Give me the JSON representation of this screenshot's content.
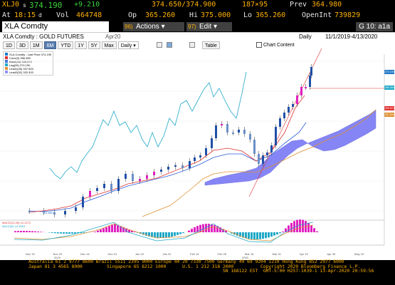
{
  "header": {
    "ticker": "XLJ0",
    "ticker_suffix": "s",
    "last": "374.190",
    "change": "+9.210",
    "bid_ask": "374.650/374.900",
    "size": "187×95",
    "prev_label": "Prev",
    "prev": "364.980",
    "at_label": "At",
    "time": "18:15",
    "time_suffix": "d",
    "vol_label": "Vol",
    "vol": "464748",
    "op_label": "Op",
    "op": "365.260",
    "hi_label": "Hi",
    "hi": "375.000",
    "lo_label": "Lo",
    "lo": "365.260",
    "oi_label": "OpenInt",
    "oi": "739829"
  },
  "toolbar": {
    "security": "XLA Comdty",
    "actions_num": "96)",
    "actions_label": "Actions ▾",
    "edit_num": "97)",
    "edit_label": "Edit ▾",
    "gindex": "G 10: a1a"
  },
  "panel": {
    "title": "XLA Comdty : GOLD FUTURES",
    "period": "Apr20",
    "frequency": "Daily",
    "range": "11/1/2019-4/13/2020",
    "buttons": [
      "1D",
      "3D",
      "1M",
      "6M",
      "YTD",
      "1Y",
      "5Y",
      "Max"
    ],
    "active_button": "6M",
    "freq_select": "Daily ▾",
    "table_label": "Table",
    "chart_content_label": "Chart Content"
  },
  "legend": [
    {
      "label": "XLA Comdty - Last Price 374.190",
      "color": "#1f78c8"
    },
    {
      "label": "Conv(9) 356.380",
      "color": "#e0302f"
    },
    {
      "label": "Base(26) 339.670",
      "color": "#2a5bd7"
    },
    {
      "label": "Lag(26) 374.190",
      "color": "#1fa8c8"
    },
    {
      "label": "Lead1(26) 337.600",
      "color": "#e09030"
    },
    {
      "label": "Lead2(52) 320.320",
      "color": "#9090ff"
    }
  ],
  "macd_legend": [
    {
      "label": "MACD(12,26) 12.1272",
      "color": "#e0302f"
    },
    {
      "label": "MACD(9) 10.5003",
      "color": "#1fa8c8"
    }
  ],
  "chart_data": {
    "type": "candlestick",
    "y_tick_labels": [
      "374.190",
      "356.380",
      "339.670",
      "337.600",
      "320.320"
    ],
    "x_tick_labels": [
      "Nov 15",
      "Nov 29",
      "Dec 16",
      "Dec 31",
      "Jan 15",
      "Jan 31",
      "Feb 14",
      "Feb 28",
      "Mar 16",
      "Mar 31",
      "Apr 15",
      "Apr 30",
      "May 15"
    ],
    "year_labels": [
      "2019",
      "2020"
    ],
    "price_low": "281.680",
    "indicators": [
      "Ichimoku Cloud",
      "MACD"
    ]
  },
  "footer": {
    "line1": "Australia 61 2 9777 8600 Brazil 5511 2395 9000 Europe 44 20 7330 7500 Germany 49 69 9204 1210 Hong Kong 852 2977 6000",
    "line2": "Japan 81 3 4565 8900         Singapore 65 6212 1000      U.S. 1 212 318 2000          Copyright 2020 Bloomberg Finance L.P.",
    "line3": "                                                                        SN 168122 EST  GMT-5:00 H257-1039-1 13-Apr-2020 20:59:56"
  },
  "colors": {
    "amber": "#ffb000",
    "green": "#3cd13c",
    "active": "#5a7fb0",
    "cloud": "#8080f0"
  }
}
